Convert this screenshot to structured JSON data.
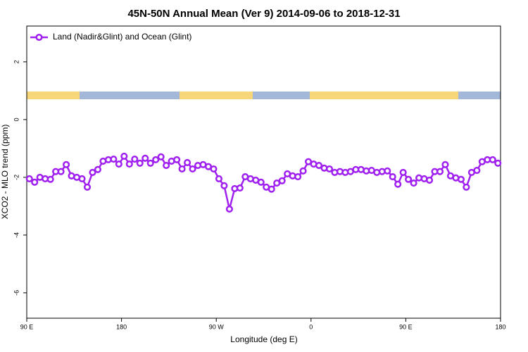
{
  "chart_data": {
    "type": "line",
    "title": "45N-50N Annual Mean (Ver 9)   2014-09-06 to 2018-12-31",
    "x_label": "Longitude (deg E)",
    "y_label": "XCO2 - MLO trend (ppm)",
    "xlim": [
      90,
      540
    ],
    "ylim": [
      -6.88,
      3.24
    ],
    "xticks": [
      {
        "value": 90,
        "label": "90 E"
      },
      180,
      {
        "value": 270,
        "label": "90 W"
      },
      {
        "value": 360,
        "label": "0"
      },
      {
        "value": 450,
        "label": "90 E"
      },
      {
        "value": 540,
        "label": "180"
      }
    ],
    "yticks": [
      -6,
      -4,
      -2,
      0,
      2
    ],
    "legend": "top-left",
    "x": [
      92.5,
      97.5,
      102.5,
      107.5,
      112.5,
      117.5,
      122.5,
      127.5,
      132.5,
      137.5,
      142.5,
      147.5,
      152.5,
      157.5,
      162.5,
      167.5,
      172.5,
      177.5,
      182.5,
      187.5,
      192.5,
      197.5,
      202.5,
      207.5,
      212.5,
      217.5,
      222.5,
      227.5,
      232.5,
      237.5,
      242.5,
      247.5,
      252.5,
      257.5,
      262.5,
      267.5,
      272.5,
      277.5,
      282.5,
      287.5,
      292.5,
      297.5,
      302.5,
      307.5,
      312.5,
      317.5,
      322.5,
      327.5,
      332.5,
      337.5,
      342.5,
      347.5,
      352.5,
      357.5,
      362.5,
      367.5,
      372.5,
      377.5,
      382.5,
      387.5,
      392.5,
      397.5,
      402.5,
      407.5,
      412.5,
      417.5,
      422.5,
      427.5,
      432.5,
      437.5,
      442.5,
      447.5,
      452.5,
      457.5,
      462.5,
      467.5,
      472.5,
      477.5,
      482.5,
      487.5,
      492.5,
      497.5,
      502.5,
      507.5,
      512.5,
      517.5,
      522.5,
      527.5,
      532.5,
      537.5
    ],
    "series": [
      {
        "name": "Land (Nadir&Glint) and Ocean (Glint)",
        "color": "#a020f0",
        "values": [
          -2.05,
          -2.17,
          -2.0,
          -2.05,
          -2.07,
          -1.8,
          -1.8,
          -1.56,
          -1.95,
          -2.0,
          -2.05,
          -2.34,
          -1.83,
          -1.73,
          -1.44,
          -1.39,
          -1.37,
          -1.54,
          -1.27,
          -1.54,
          -1.37,
          -1.51,
          -1.34,
          -1.51,
          -1.39,
          -1.29,
          -1.59,
          -1.44,
          -1.39,
          -1.71,
          -1.49,
          -1.71,
          -1.59,
          -1.56,
          -1.63,
          -1.71,
          -2.05,
          -2.29,
          -3.1,
          -2.39,
          -2.37,
          -1.98,
          -2.05,
          -2.1,
          -2.17,
          -2.34,
          -2.41,
          -2.2,
          -2.12,
          -1.88,
          -1.95,
          -1.98,
          -1.78,
          -1.46,
          -1.54,
          -1.59,
          -1.68,
          -1.71,
          -1.83,
          -1.8,
          -1.83,
          -1.8,
          -1.73,
          -1.73,
          -1.78,
          -1.76,
          -1.83,
          -1.8,
          -1.78,
          -1.98,
          -2.24,
          -1.83,
          -2.07,
          -2.2,
          -2.02,
          -2.05,
          -2.1,
          -1.8,
          -1.8,
          -1.56,
          -1.95,
          -2.02,
          -2.07,
          -2.34,
          -1.83,
          -1.76,
          -1.46,
          -1.39,
          -1.39,
          -1.51
        ]
      }
    ]
  }
}
